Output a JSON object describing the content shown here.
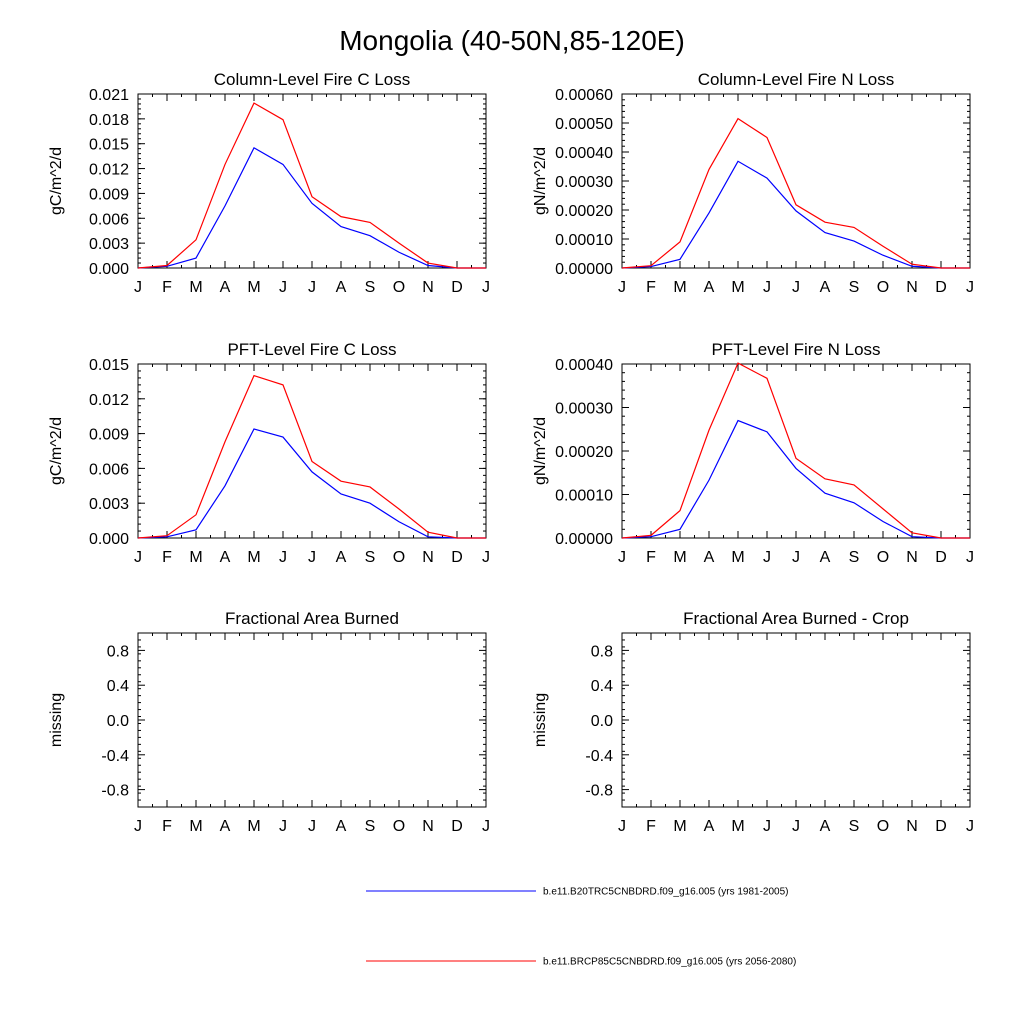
{
  "title": "Mongolia (40-50N,85-120E)",
  "colors": {
    "series1": "#0000ff",
    "series2": "#ff0000",
    "axis": "#000000"
  },
  "legend": [
    {
      "label": "b.e11.B20TRC5CNBDRD.f09_g16.005 (yrs 1981-2005)",
      "color": "#0000ff"
    },
    {
      "label": "b.e11.BRCP85C5CNBDRD.f09_g16.005 (yrs 2056-2080)",
      "color": "#ff0000"
    }
  ],
  "chart_data": [
    {
      "type": "line",
      "title": "Column-Level Fire C Loss",
      "ylabel": "gC/m^2/d",
      "categories": [
        "J",
        "F",
        "M",
        "A",
        "M",
        "J",
        "J",
        "A",
        "S",
        "O",
        "N",
        "D",
        "J"
      ],
      "ylim": [
        0,
        0.021
      ],
      "yticks": [
        "0.000",
        "0.003",
        "0.006",
        "0.009",
        "0.012",
        "0.015",
        "0.018",
        "0.021"
      ],
      "series": [
        {
          "name": "b.e11.B20TRC5CNBDRD.f09_g16.005 (yrs 1981-2005)",
          "values": [
            0.0,
            0.0002,
            0.0012,
            0.0075,
            0.0145,
            0.0125,
            0.0078,
            0.005,
            0.0039,
            0.0019,
            0.0003,
            0.0,
            0.0
          ]
        },
        {
          "name": "b.e11.BRCP85C5CNBDRD.f09_g16.005 (yrs 2056-2080)",
          "values": [
            0.0,
            0.0003,
            0.0034,
            0.0125,
            0.0199,
            0.0179,
            0.0086,
            0.0062,
            0.0055,
            0.003,
            0.0006,
            0.0,
            0.0
          ]
        }
      ]
    },
    {
      "type": "line",
      "title": "Column-Level Fire N Loss",
      "ylabel": "gN/m^2/d",
      "categories": [
        "J",
        "F",
        "M",
        "A",
        "M",
        "J",
        "J",
        "A",
        "S",
        "O",
        "N",
        "D",
        "J"
      ],
      "ylim": [
        0,
        0.0006
      ],
      "yticks": [
        "0.00000",
        "0.00010",
        "0.00020",
        "0.00030",
        "0.00040",
        "0.00050",
        "0.00060"
      ],
      "series": [
        {
          "name": "b.e11.B20TRC5CNBDRD.f09_g16.005 (yrs 1981-2005)",
          "values": [
            0.0,
            5e-06,
            3e-05,
            0.00019,
            0.000368,
            0.00031,
            0.000197,
            0.000122,
            9.3e-05,
            4.4e-05,
            6e-06,
            0.0,
            0.0
          ]
        },
        {
          "name": "b.e11.BRCP85C5CNBDRD.f09_g16.005 (yrs 2056-2080)",
          "values": [
            0.0,
            8e-06,
            9e-05,
            0.00034,
            0.000515,
            0.00045,
            0.000218,
            0.000158,
            0.00014,
            7.5e-05,
            1.3e-05,
            0.0,
            0.0
          ]
        }
      ]
    },
    {
      "type": "line",
      "title": "PFT-Level Fire C Loss",
      "ylabel": "gC/m^2/d",
      "categories": [
        "J",
        "F",
        "M",
        "A",
        "M",
        "J",
        "J",
        "A",
        "S",
        "O",
        "N",
        "D",
        "J"
      ],
      "ylim": [
        0,
        0.015
      ],
      "yticks": [
        "0.000",
        "0.003",
        "0.006",
        "0.009",
        "0.012",
        "0.015"
      ],
      "series": [
        {
          "name": "b.e11.B20TRC5CNBDRD.f09_g16.005 (yrs 1981-2005)",
          "values": [
            0.0,
            0.0001,
            0.0007,
            0.0045,
            0.0094,
            0.0087,
            0.0057,
            0.0038,
            0.003,
            0.0014,
            0.0001,
            0.0,
            0.0
          ]
        },
        {
          "name": "b.e11.BRCP85C5CNBDRD.f09_g16.005 (yrs 2056-2080)",
          "values": [
            0.0,
            0.0002,
            0.002,
            0.0083,
            0.014,
            0.0132,
            0.0066,
            0.0049,
            0.0044,
            0.0025,
            0.0005,
            0.0,
            0.0
          ]
        }
      ]
    },
    {
      "type": "line",
      "title": "PFT-Level Fire N Loss",
      "ylabel": "gN/m^2/d",
      "categories": [
        "J",
        "F",
        "M",
        "A",
        "M",
        "J",
        "J",
        "A",
        "S",
        "O",
        "N",
        "D",
        "J"
      ],
      "ylim": [
        0,
        0.0004
      ],
      "yticks": [
        "0.00000",
        "0.00010",
        "0.00020",
        "0.00030",
        "0.00040"
      ],
      "series": [
        {
          "name": "b.e11.B20TRC5CNBDRD.f09_g16.005 (yrs 1981-2005)",
          "values": [
            0.0,
            3e-06,
            2e-05,
            0.000133,
            0.00027,
            0.000244,
            0.00016,
            0.000103,
            8.1e-05,
            3.8e-05,
            3e-06,
            0.0,
            0.0
          ]
        },
        {
          "name": "b.e11.BRCP85C5CNBDRD.f09_g16.005 (yrs 2056-2080)",
          "values": [
            0.0,
            6e-06,
            6.3e-05,
            0.000248,
            0.000402,
            0.000367,
            0.000183,
            0.000136,
            0.000122,
            6.7e-05,
            1.2e-05,
            0.0,
            0.0
          ]
        }
      ]
    },
    {
      "type": "line",
      "title": "Fractional Area Burned",
      "ylabel": "missing",
      "categories": [
        "J",
        "F",
        "M",
        "A",
        "M",
        "J",
        "J",
        "A",
        "S",
        "O",
        "N",
        "D",
        "J"
      ],
      "ylim": [
        -1.0,
        1.0
      ],
      "yticks": [
        "-0.8",
        "-0.4",
        "0.0",
        "0.4",
        "0.8"
      ],
      "series": []
    },
    {
      "type": "line",
      "title": "Fractional Area Burned - Crop",
      "ylabel": "missing",
      "categories": [
        "J",
        "F",
        "M",
        "A",
        "M",
        "J",
        "J",
        "A",
        "S",
        "O",
        "N",
        "D",
        "J"
      ],
      "ylim": [
        -1.0,
        1.0
      ],
      "yticks": [
        "-0.8",
        "-0.4",
        "0.0",
        "0.4",
        "0.8"
      ],
      "series": []
    }
  ]
}
